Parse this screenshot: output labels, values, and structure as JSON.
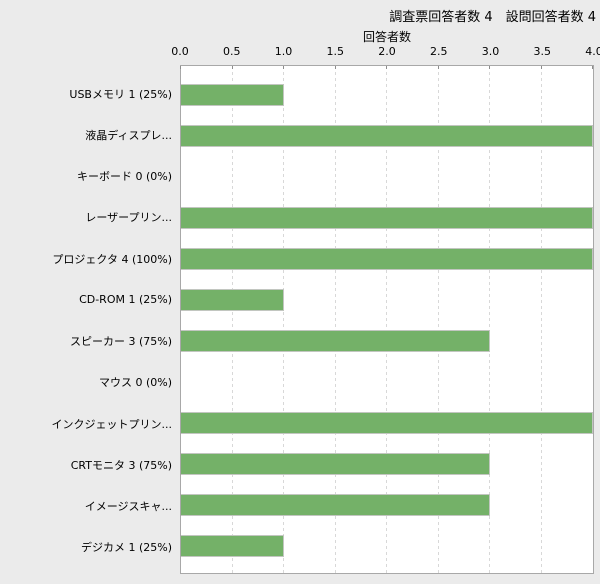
{
  "header": {
    "title": "調査票回答者数 4　設問回答者数 4"
  },
  "chart_data": {
    "type": "bar",
    "orientation": "horizontal",
    "title": "調査票回答者数 4　設問回答者数 4",
    "xlabel": "回答者数",
    "xlim": [
      0,
      4
    ],
    "x_ticks": [
      "0.0",
      "0.5",
      "1.0",
      "1.5",
      "2.0",
      "2.5",
      "3.0",
      "3.5",
      "4.0"
    ],
    "grid": "vertical-dashed",
    "legend": "none",
    "categories": [
      "USBメモリ 1 (25%)",
      "液晶ディスプレ...",
      "キーボード 0 (0%)",
      "レーザープリン...",
      "プロジェクタ 4 (100%)",
      "CD-ROM 1 (25%)",
      "スピーカー 3 (75%)",
      "マウス 0 (0%)",
      "インクジェットプリン...",
      "CRTモニタ 3 (75%)",
      "イメージスキャ...",
      "デジカメ 1 (25%)"
    ],
    "values": [
      1,
      4,
      0,
      4,
      4,
      1,
      3,
      0,
      4,
      3,
      3,
      1
    ]
  },
  "colors": {
    "page_bg": "#ebebeb",
    "plot_bg": "#ffffff",
    "plot_border": "#a8a8a8",
    "grid": "#d8d8d8",
    "bar_fill": "#74b168",
    "bar_border": "#c2c6c0",
    "text": "#000000"
  }
}
